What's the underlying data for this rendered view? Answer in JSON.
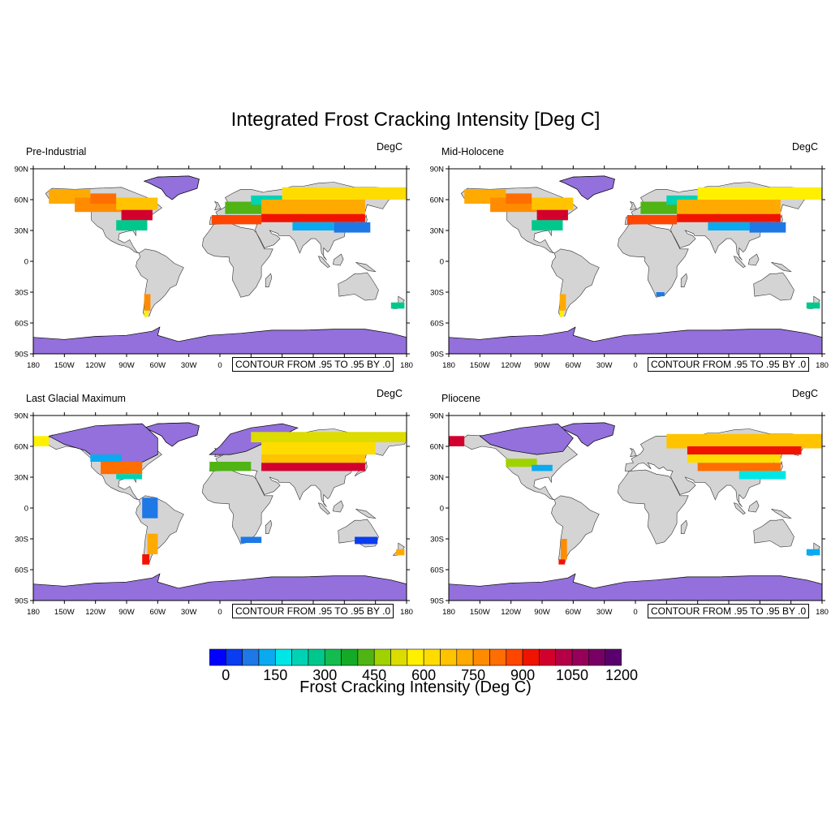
{
  "title": "Integrated Frost Cracking Intensity [Deg C]",
  "panels": [
    {
      "title": "Pre-Industrial",
      "units": "DegC",
      "contour": "CONTOUR FROM .95 TO .95 BY .0"
    },
    {
      "title": "Mid-Holocene",
      "units": "DegC",
      "contour": "CONTOUR FROM .95 TO .95 BY .0"
    },
    {
      "title": "Last Glacial Maximum",
      "units": "DegC",
      "contour": "CONTOUR FROM .95 TO .95 BY .0"
    },
    {
      "title": "Pliocene",
      "units": "DegC",
      "contour": "CONTOUR FROM .95 TO .95 BY .0"
    }
  ],
  "axes": {
    "lat_labels": [
      "90N",
      "60N",
      "30N",
      "0",
      "30S",
      "60S",
      "90S"
    ],
    "lon_labels": [
      "180",
      "150W",
      "120W",
      "90W",
      "60W",
      "30W",
      "0",
      "30E",
      "60E",
      "90E",
      "120E",
      "150E",
      "180"
    ]
  },
  "colorbar": {
    "title": "Frost Cracking Intensity (Deg C)",
    "tick_labels": [
      "0",
      "150",
      "300",
      "450",
      "600",
      "750",
      "900",
      "1050",
      "1200"
    ],
    "colors": [
      "#0000ff",
      "#0a3cf0",
      "#1e78e6",
      "#0aaaf0",
      "#00e6e6",
      "#00d2b4",
      "#00c88c",
      "#14bc50",
      "#14aa28",
      "#50b414",
      "#a0d200",
      "#dcdc00",
      "#fff000",
      "#ffdc00",
      "#ffc300",
      "#ffaa00",
      "#ff8c00",
      "#ff6e00",
      "#ff4600",
      "#f01400",
      "#d2002d",
      "#b40046",
      "#96005a",
      "#780064",
      "#5a006e"
    ]
  },
  "map_colors": {
    "ocean": "#ffffff",
    "land": "#d4d4d4",
    "ice": "#9370db"
  }
}
